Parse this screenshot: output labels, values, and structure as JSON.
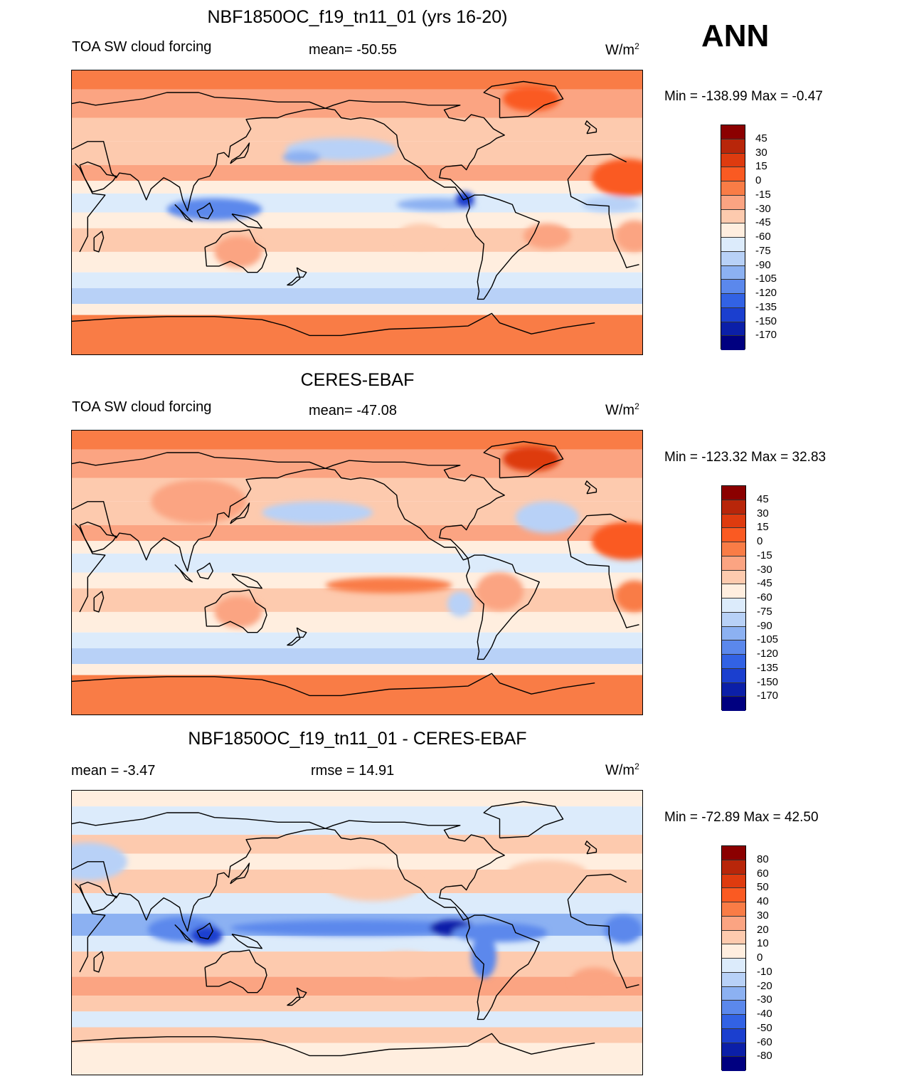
{
  "season": "ANN",
  "panels": [
    {
      "title": "NBF1850OC_f19_tn11_01 (yrs 16-20)",
      "left_label": "TOA SW cloud forcing",
      "center_label": "mean= -50.55",
      "units_base": "W/m",
      "units_exp": "2",
      "minmax": "Min = -138.99 Max =  -0.47",
      "map_kind": "model"
    },
    {
      "title": "CERES-EBAF",
      "left_label": "TOA SW cloud forcing",
      "center_label": "mean= -47.08",
      "units_base": "W/m",
      "units_exp": "2",
      "minmax": "Min = -123.32 Max =  32.83",
      "map_kind": "obs"
    },
    {
      "title": "NBF1850OC_f19_tn11_01 - CERES-EBAF",
      "left_label": "mean =  -3.47",
      "center_label": "rmse =  14.91",
      "units_base": "W/m",
      "units_exp": "2",
      "minmax": "Min = -72.89 Max =  42.50",
      "map_kind": "diff"
    }
  ],
  "colorbars": {
    "field": {
      "labels": [
        "45",
        "30",
        "15",
        "0",
        "-15",
        "-30",
        "-45",
        "-60",
        "-75",
        "-90",
        "-105",
        "-120",
        "-135",
        "-150",
        "-170"
      ],
      "colors": [
        "#8b0000",
        "#b8260a",
        "#de3b0f",
        "#fa5a22",
        "#f97c46",
        "#fba482",
        "#fdcaae",
        "#ffeedf",
        "#dcebfb",
        "#b8d1f7",
        "#8cb1f2",
        "#5b88ec",
        "#3262e4",
        "#1b3fcf",
        "#0b1fa8",
        "#000080"
      ]
    },
    "diff": {
      "labels": [
        "80",
        "60",
        "50",
        "40",
        "30",
        "20",
        "10",
        "0",
        "-10",
        "-20",
        "-30",
        "-40",
        "-50",
        "-60",
        "-80"
      ],
      "colors": [
        "#8b0000",
        "#b8260a",
        "#de3b0f",
        "#fa5a22",
        "#f97c46",
        "#fba482",
        "#fdcaae",
        "#ffeedf",
        "#dcebfb",
        "#b8d1f7",
        "#8cb1f2",
        "#5b88ec",
        "#3262e4",
        "#1b3fcf",
        "#0b1fa8",
        "#000080"
      ]
    }
  }
}
